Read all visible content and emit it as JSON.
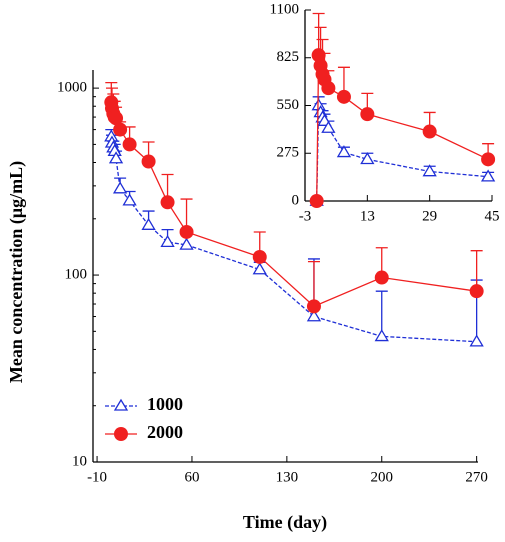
{
  "chart_data": [
    {
      "type": "line",
      "log_y": true,
      "xlabel": "Time (day)",
      "ylabel": "Mean concentration (μg/mL)",
      "xlim": [
        -13,
        271
      ],
      "xticks": [
        -10,
        60,
        130,
        200,
        270
      ],
      "ylim": [
        10,
        1250
      ],
      "yticks": [
        10,
        100,
        1000
      ],
      "legend": "lower left",
      "x": [
        0.5,
        1,
        2,
        3,
        4,
        7,
        14,
        28,
        42,
        56,
        110,
        150,
        200,
        270
      ],
      "series": [
        {
          "name": "1000",
          "color": "#1f2fd6",
          "marker": "triangle",
          "line_style": "dashed",
          "values": [
            550,
            510,
            480,
            460,
            420,
            290,
            250,
            185,
            150,
            145,
            107,
            60,
            47,
            44
          ],
          "errors": [
            50,
            50,
            40,
            40,
            40,
            40,
            30,
            35,
            25,
            20,
            10,
            62,
            35,
            50
          ]
        },
        {
          "name": "2000",
          "color": "#f02020",
          "marker": "circle",
          "line_style": "solid",
          "values": [
            840,
            780,
            730,
            700,
            690,
            600,
            500,
            405,
            245,
            170,
            125,
            68,
            97,
            82
          ],
          "errors": [
            230,
            220,
            200,
            150,
            100,
            60,
            120,
            110,
            100,
            85,
            45,
            50,
            43,
            53
          ]
        }
      ]
    },
    {
      "type": "line",
      "log_y": false,
      "xlim": [
        -3,
        45
      ],
      "xticks": [
        -3,
        13,
        29,
        45
      ],
      "ylim": [
        0,
        1100
      ],
      "yticks": [
        0,
        275,
        550,
        825,
        1100
      ],
      "x": [
        0,
        0.5,
        1,
        1.5,
        2,
        3,
        7,
        13,
        29,
        44
      ],
      "series": [
        {
          "name": "1000",
          "color": "#1f2fd6",
          "marker": "triangle",
          "line_style": "dashed",
          "values": [
            0,
            550,
            510,
            480,
            460,
            420,
            280,
            240,
            170,
            140
          ],
          "errors": [
            0,
            50,
            50,
            40,
            40,
            40,
            30,
            35,
            30,
            25
          ]
        },
        {
          "name": "2000",
          "color": "#f02020",
          "marker": "circle",
          "line_style": "solid",
          "values": [
            0,
            840,
            780,
            730,
            700,
            650,
            600,
            500,
            400,
            240
          ],
          "errors": [
            0,
            240,
            220,
            200,
            150,
            100,
            170,
            120,
            110,
            90
          ]
        }
      ]
    }
  ]
}
